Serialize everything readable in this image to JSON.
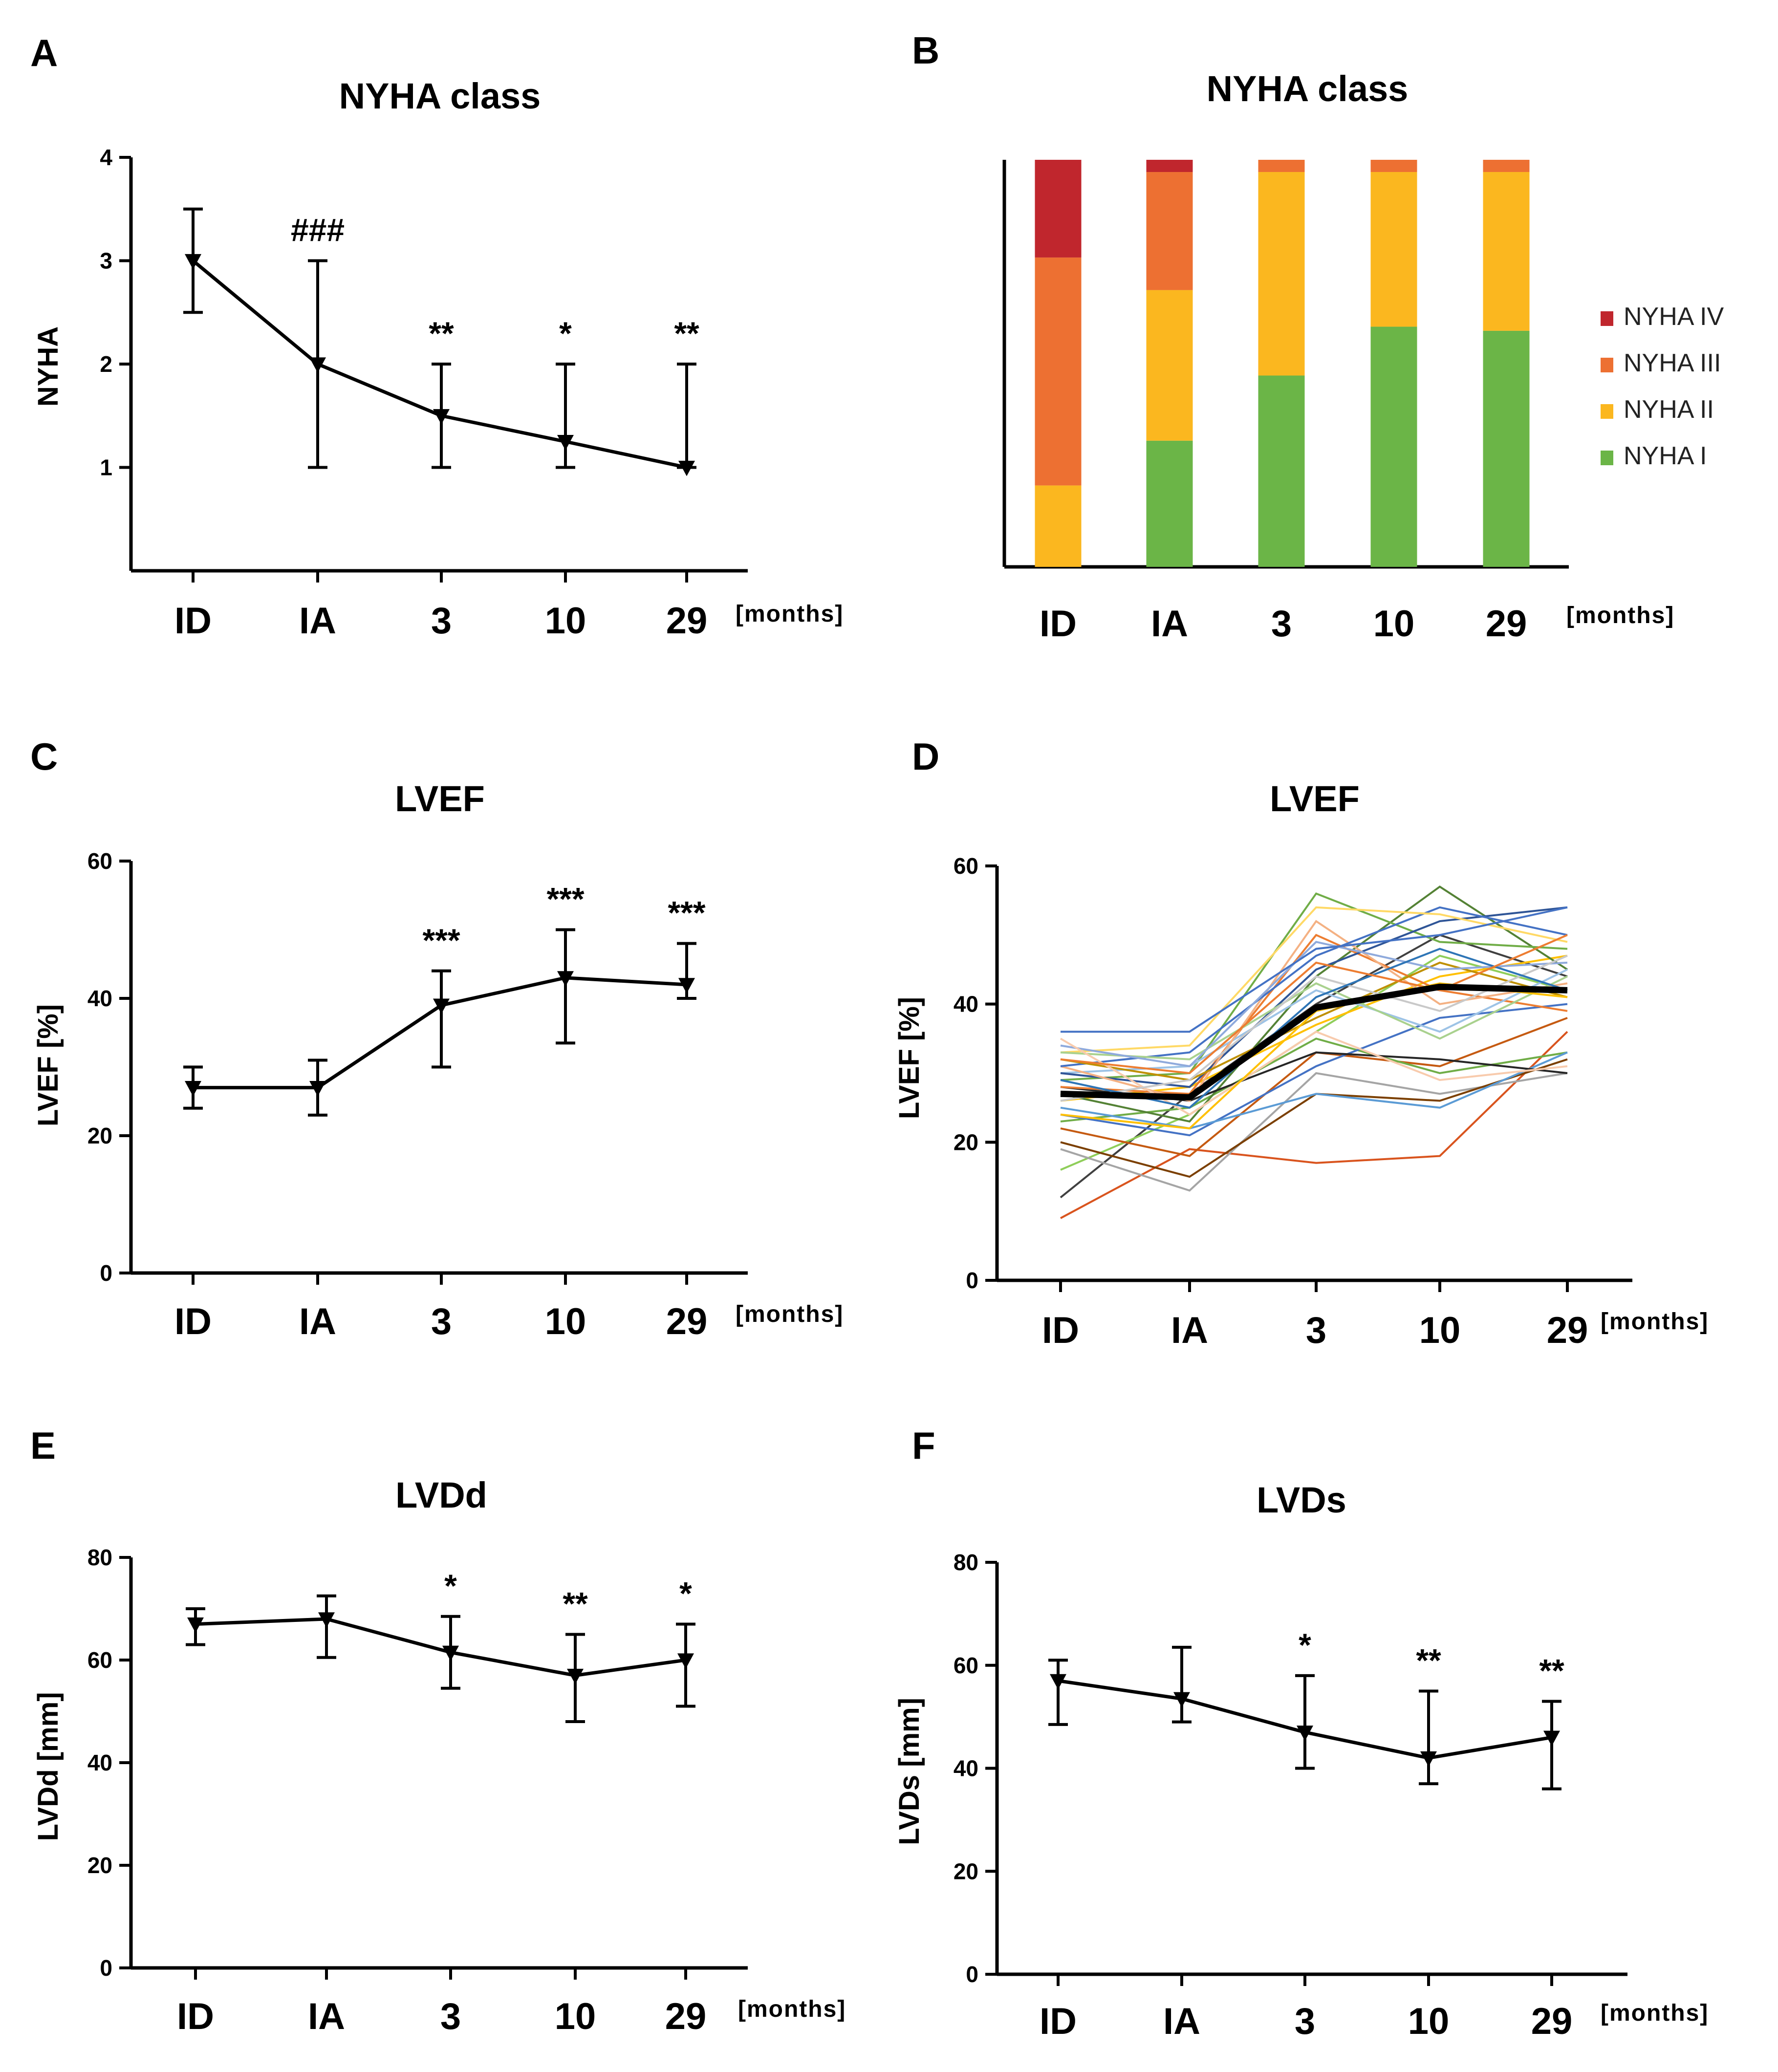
{
  "x_unit": "[months]",
  "categories": [
    "ID",
    "IA",
    "3",
    "10",
    "29"
  ],
  "chart_data": [
    {
      "panel": "A",
      "type": "line",
      "title": "NYHA class",
      "ylabel": "NYHA",
      "xlabel": "[months]",
      "ylim": [
        0,
        4
      ],
      "yticks": [
        1,
        2,
        3,
        4
      ],
      "categories": [
        "ID",
        "IA",
        "3",
        "10",
        "29"
      ],
      "values": [
        3,
        2,
        1.5,
        1.25,
        1
      ],
      "error_low": [
        2.5,
        1,
        1,
        1,
        1
      ],
      "error_high": [
        3.5,
        3,
        2,
        2,
        2
      ],
      "annotations": [
        "",
        "###",
        "**",
        "*",
        "**"
      ]
    },
    {
      "panel": "B",
      "type": "bar",
      "stacked": true,
      "title": "NYHA class",
      "xlabel": "[months]",
      "categories": [
        "ID",
        "IA",
        "3",
        "10",
        "29"
      ],
      "colors": {
        "NYHA IV": "#c0262d",
        "NYHA III": "#ed7032",
        "NYHA II": "#fbb71f",
        "NYHA I": "#6bb547"
      },
      "legend": [
        "NYHA IV",
        "NYHA III",
        "NYHA II",
        "NYHA I"
      ],
      "legend_position": "right",
      "series": [
        {
          "name": "NYHA I",
          "values": [
            0,
            31,
            47,
            59,
            58
          ]
        },
        {
          "name": "NYHA II",
          "values": [
            20,
            37,
            50,
            38,
            39
          ]
        },
        {
          "name": "NYHA III",
          "values": [
            56,
            29,
            3,
            3,
            3
          ]
        },
        {
          "name": "NYHA IV",
          "values": [
            24,
            3,
            0,
            0,
            0
          ]
        }
      ]
    },
    {
      "panel": "C",
      "type": "line",
      "title": "LVEF",
      "ylabel": "LVEF [%]",
      "xlabel": "[months]",
      "ylim": [
        0,
        60
      ],
      "yticks": [
        0,
        20,
        40,
        60
      ],
      "categories": [
        "ID",
        "IA",
        "3",
        "10",
        "29"
      ],
      "values": [
        27,
        27,
        39,
        43,
        42
      ],
      "error_low": [
        24,
        23,
        30,
        33.5,
        40
      ],
      "error_high": [
        30,
        31,
        44,
        50,
        48
      ],
      "annotations": [
        "",
        "",
        "***",
        "***",
        "***"
      ]
    },
    {
      "panel": "D",
      "type": "line",
      "title": "LVEF",
      "ylabel": "LVEF [%]",
      "xlabel": "[months]",
      "ylim": [
        0,
        60
      ],
      "yticks": [
        0,
        20,
        40,
        60
      ],
      "categories": [
        "ID",
        "IA",
        "3",
        "10",
        "29"
      ],
      "mean": {
        "name": "mean",
        "values": [
          27,
          26.5,
          39.5,
          42.5,
          42
        ],
        "color": "#000000"
      },
      "series": [
        {
          "name": "p1",
          "values": [
            9,
            19,
            17,
            18,
            36
          ],
          "color": "#d9541e"
        },
        {
          "name": "p2",
          "values": [
            12,
            27,
            40,
            50,
            44
          ],
          "color": "#404040"
        },
        {
          "name": "p3",
          "values": [
            16,
            24,
            36,
            47,
            42
          ],
          "color": "#8fce5a"
        },
        {
          "name": "p4",
          "values": [
            19,
            13,
            30,
            27,
            30
          ],
          "color": "#a5a5a5"
        },
        {
          "name": "p5",
          "values": [
            20,
            15,
            27,
            26,
            32
          ],
          "color": "#7b3f00"
        },
        {
          "name": "p6",
          "values": [
            22,
            18,
            33,
            31,
            38
          ],
          "color": "#c55a11"
        },
        {
          "name": "p7",
          "values": [
            23,
            25,
            35,
            30,
            33
          ],
          "color": "#70ad47"
        },
        {
          "name": "p8",
          "values": [
            24,
            21,
            31,
            38,
            40
          ],
          "color": "#4472c4"
        },
        {
          "name": "p9",
          "values": [
            25,
            22,
            27,
            25,
            33
          ],
          "color": "#5b9bd5"
        },
        {
          "name": "p10",
          "values": [
            26,
            28,
            37,
            44,
            47
          ],
          "color": "#ffc000"
        },
        {
          "name": "p11",
          "values": [
            27,
            23,
            44,
            57,
            45
          ],
          "color": "#548235"
        },
        {
          "name": "p12",
          "values": [
            28,
            26,
            33,
            32,
            30
          ],
          "color": "#262626"
        },
        {
          "name": "p13",
          "values": [
            28,
            27,
            50,
            42,
            39
          ],
          "color": "#ed7d31"
        },
        {
          "name": "p14",
          "values": [
            29,
            30,
            56,
            49,
            48
          ],
          "color": "#70ad47"
        },
        {
          "name": "p15",
          "values": [
            30,
            31,
            42,
            36,
            45
          ],
          "color": "#9dc3e6"
        },
        {
          "name": "p16",
          "values": [
            30,
            28,
            45,
            52,
            54
          ],
          "color": "#2f5597"
        },
        {
          "name": "p17",
          "values": [
            31,
            26,
            52,
            40,
            43
          ],
          "color": "#f4b183"
        },
        {
          "name": "p18",
          "values": [
            31,
            33,
            47,
            54,
            50
          ],
          "color": "#4472c4"
        },
        {
          "name": "p19",
          "values": [
            32,
            29,
            38,
            46,
            41
          ],
          "color": "#bf9000"
        },
        {
          "name": "p20",
          "values": [
            33,
            34,
            54,
            53,
            49
          ],
          "color": "#ffd966"
        },
        {
          "name": "p21",
          "values": [
            33,
            32,
            43,
            35,
            44
          ],
          "color": "#a9d18e"
        },
        {
          "name": "p22",
          "values": [
            34,
            31,
            49,
            45,
            46
          ],
          "color": "#8faadc"
        },
        {
          "name": "p23",
          "values": [
            35,
            24,
            36,
            29,
            31
          ],
          "color": "#f8cbad"
        },
        {
          "name": "p24",
          "values": [
            36,
            36,
            48,
            50,
            54
          ],
          "color": "#4472c4"
        },
        {
          "name": "p25",
          "values": [
            26,
            29,
            44,
            39,
            47
          ],
          "color": "#c9c9c9"
        },
        {
          "name": "p26",
          "values": [
            29,
            25,
            41,
            48,
            42
          ],
          "color": "#2e75b6"
        },
        {
          "name": "p27",
          "values": [
            32,
            30,
            46,
            42,
            50
          ],
          "color": "#ed7d31"
        },
        {
          "name": "p28",
          "values": [
            24,
            22,
            39,
            43,
            41
          ],
          "color": "#ffc000"
        }
      ]
    },
    {
      "panel": "E",
      "type": "line",
      "title": "LVDd",
      "ylabel": "LVDd [mm]",
      "xlabel": "[months]",
      "ylim": [
        0,
        80
      ],
      "yticks": [
        0,
        20,
        40,
        60,
        80
      ],
      "categories": [
        "ID",
        "IA",
        "3",
        "10",
        "29"
      ],
      "values": [
        67,
        68,
        61.5,
        57,
        60
      ],
      "error_low": [
        63,
        60.5,
        54.5,
        48,
        51
      ],
      "error_high": [
        70,
        72.5,
        68.5,
        65,
        67
      ],
      "annotations": [
        "",
        "",
        "*",
        "**",
        "*"
      ]
    },
    {
      "panel": "F",
      "type": "line",
      "title": "LVDs",
      "ylabel": "LVDs [mm]",
      "xlabel": "[months]",
      "ylim": [
        0,
        80
      ],
      "yticks": [
        0,
        20,
        40,
        60,
        80
      ],
      "categories": [
        "ID",
        "IA",
        "3",
        "10",
        "29"
      ],
      "values": [
        57,
        53.5,
        47,
        42,
        46
      ],
      "error_low": [
        48.5,
        49,
        40,
        37,
        36
      ],
      "error_high": [
        61,
        63.5,
        58,
        55,
        53
      ],
      "annotations": [
        "",
        "",
        "*",
        "**",
        "**"
      ]
    }
  ]
}
